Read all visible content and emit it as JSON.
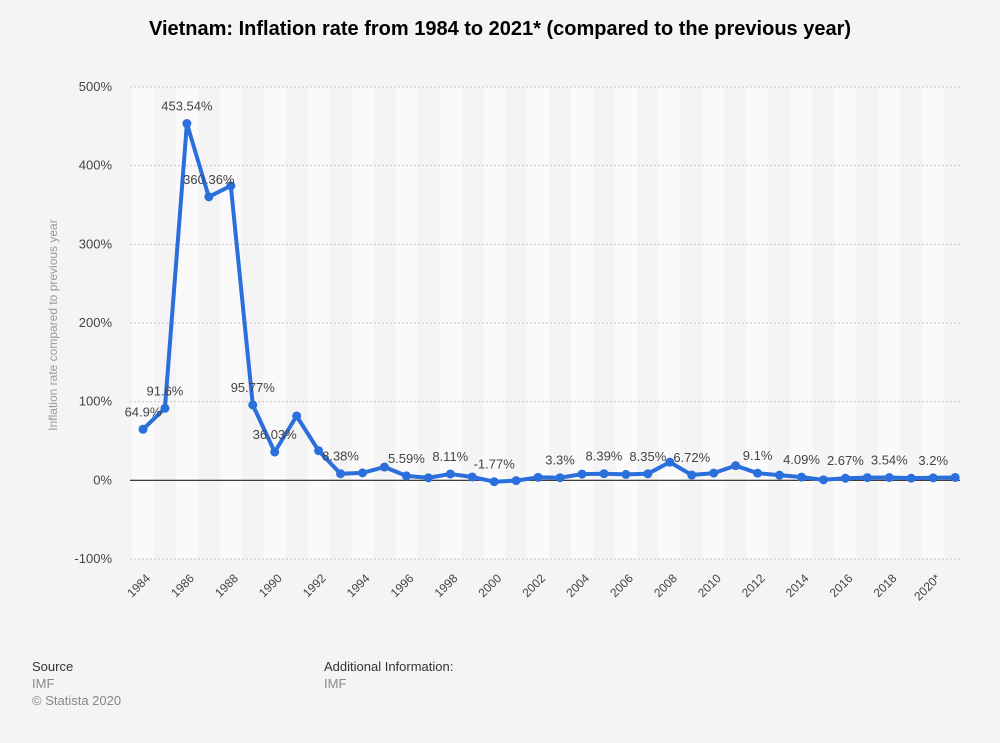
{
  "chart_data": {
    "type": "line",
    "title": "Vietnam: Inflation rate from 1984 to 2021* (compared to the previous year)",
    "ylabel": "Inflation rate compared to previous year",
    "xlabel": "",
    "ylim": [
      -100,
      500
    ],
    "yticks": [
      500,
      400,
      300,
      200,
      100,
      0,
      -100
    ],
    "ytick_labels": [
      "500%",
      "400%",
      "300%",
      "200%",
      "100%",
      "0%",
      "-100%"
    ],
    "x": [
      "1984",
      "1985",
      "1986",
      "1987",
      "1988",
      "1989",
      "1990",
      "1991",
      "1992",
      "1993",
      "1994",
      "1995",
      "1996",
      "1997",
      "1998",
      "1999",
      "2000",
      "2001",
      "2002",
      "2003",
      "2004",
      "2005",
      "2006",
      "2007",
      "2008",
      "2009",
      "2010",
      "2011",
      "2012",
      "2013",
      "2014",
      "2015",
      "2016",
      "2017",
      "2018",
      "2019",
      "2020*",
      "2021*"
    ],
    "xtick_labels": [
      "1984",
      "1986",
      "1988",
      "1990",
      "1992",
      "1994",
      "1996",
      "1998",
      "2000",
      "2002",
      "2004",
      "2006",
      "2008",
      "2010",
      "2012",
      "2014",
      "2016",
      "2018",
      "2020*"
    ],
    "series": [
      {
        "values": [
          64.9,
          91.6,
          453.54,
          360.36,
          374.35,
          95.77,
          36.03,
          81.82,
          37.71,
          8.38,
          9.48,
          16.93,
          5.59,
          3.21,
          8.11,
          4.3,
          -1.77,
          -0.31,
          3.83,
          3.3,
          7.9,
          8.39,
          7.5,
          8.35,
          23.12,
          6.72,
          9.21,
          18.68,
          9.1,
          6.59,
          4.09,
          0.63,
          2.67,
          3.52,
          3.54,
          2.8,
          3.2,
          3.65
        ],
        "color": "#2a6fdb"
      }
    ],
    "data_labels": {
      "1984": "64.9%",
      "1985": "91.6%",
      "1986": "453.54%",
      "1987": "360.36%",
      "1989": "95.77%",
      "1990": "36.03%",
      "1993": "8.38%",
      "1996": "5.59%",
      "1998": "8.11%",
      "2000": "-1.77%",
      "2003": "3.3%",
      "2005": "8.39%",
      "2007": "8.35%",
      "2009": "6.72%",
      "2012": "9.1%",
      "2014": "4.09%",
      "2016": "2.67%",
      "2018": "3.54%",
      "2020*": "3.2%"
    },
    "grid": true,
    "legend": "none"
  },
  "footer": {
    "source_heading": "Source",
    "source_name": "IMF",
    "copyright": "© Statista 2020",
    "additional_heading": "Additional Information:",
    "additional_value": "IMF"
  }
}
